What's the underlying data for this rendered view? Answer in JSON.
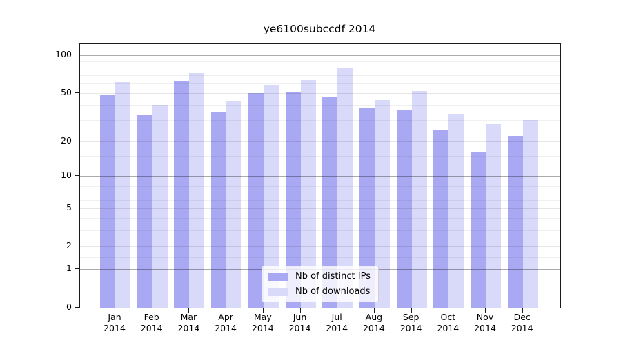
{
  "title": "ye6100subccdf 2014",
  "chart_data": {
    "type": "bar",
    "title": "ye6100subccdf 2014",
    "categories": [
      "Jan 2014",
      "Feb 2014",
      "Mar 2014",
      "Apr 2014",
      "May 2014",
      "Jun 2014",
      "Jul 2014",
      "Aug 2014",
      "Sep 2014",
      "Oct 2014",
      "Nov 2014",
      "Dec 2014"
    ],
    "series": [
      {
        "name": "Nb of distinct IPs",
        "color": "#a9a9f3",
        "values": [
          48,
          33,
          63,
          35,
          50,
          51,
          47,
          38,
          36,
          25,
          16,
          22
        ]
      },
      {
        "name": "Nb of downloads",
        "color": "#d9d9fa",
        "values": [
          61,
          40,
          72,
          43,
          58,
          64,
          80,
          44,
          52,
          34,
          28,
          30
        ]
      }
    ],
    "xlabel": "",
    "ylabel": "",
    "y_axis": {
      "scale": "log-like with 1-2-5 tick sequence, 0 baseline",
      "tick_labels": [
        "0",
        "1",
        "2",
        "5",
        "10",
        "20",
        "50",
        "100"
      ],
      "range_top_approx": 120
    },
    "grid": "horizontal major and minor gridlines",
    "legend_position": "lower center"
  }
}
